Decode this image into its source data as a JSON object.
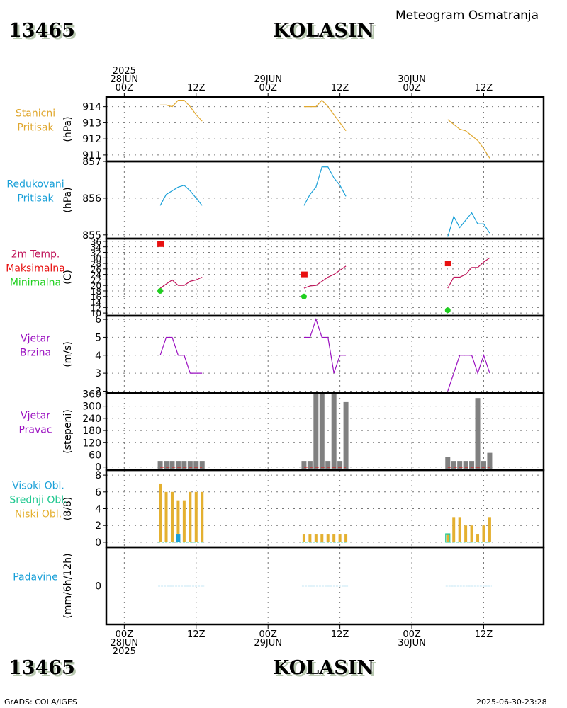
{
  "header": {
    "station_id": "13465",
    "station_name": "KOLASIN",
    "subtitle": "Meteogram Osmatranja"
  },
  "footer": {
    "station_id": "13465",
    "station_name": "KOLASIN",
    "credit": "GrADS: COLA/IGES",
    "timestamp": "2025-06-30-23:28"
  },
  "colors": {
    "station_pressure": "#e0a830",
    "reduced_pressure": "#1aa0d8",
    "temperature": "#c0145a",
    "tmax": "#e81010",
    "tmin": "#20d020",
    "wind": "#9a10c0",
    "wind_dir_bar": "#808080",
    "low_cloud": "#e4b030",
    "mid_cloud": "#20c890",
    "high_cloud": "#1aa0d8",
    "precip": "#1aa0d8"
  },
  "chart_data": {
    "type": "line",
    "title": "Meteogram Osmatranja - KOLASIN (13465)",
    "time_axis": {
      "unit": "hours since 2025-06-28 00Z",
      "range": [
        -3,
        70
      ],
      "top_labels": [
        {
          "h": 0,
          "lines": [
            "2025",
            "28JUN",
            "00Z"
          ]
        },
        {
          "h": 12,
          "lines": [
            "12Z"
          ]
        },
        {
          "h": 24,
          "lines": [
            "29JUN",
            "00Z"
          ]
        },
        {
          "h": 36,
          "lines": [
            "12Z"
          ]
        },
        {
          "h": 48,
          "lines": [
            "30JUN",
            "00Z"
          ]
        },
        {
          "h": 60,
          "lines": [
            "12Z"
          ]
        }
      ],
      "bottom_labels": [
        {
          "h": 0,
          "lines": [
            "00Z",
            "28JUN",
            "2025"
          ]
        },
        {
          "h": 12,
          "lines": [
            "12Z"
          ]
        },
        {
          "h": 24,
          "lines": [
            "00Z",
            "29JUN"
          ]
        },
        {
          "h": 36,
          "lines": [
            "12Z"
          ]
        },
        {
          "h": 48,
          "lines": [
            "00Z",
            "30JUN"
          ]
        },
        {
          "h": 60,
          "lines": [
            "12Z"
          ]
        }
      ]
    },
    "obs_hours": [
      6,
      7,
      8,
      9,
      10,
      11,
      12,
      13,
      30,
      31,
      32,
      33,
      34,
      35,
      36,
      37,
      54,
      55,
      56,
      57,
      58,
      59,
      60,
      61
    ],
    "panels": [
      {
        "key": "station_pressure",
        "label": [
          "Stanicni",
          "Pritisak"
        ],
        "unit": "(hPa)",
        "ylim": [
          910.6,
          914.6
        ],
        "ticks": [
          911,
          912,
          913,
          914
        ],
        "segments": [
          [
            914.1,
            914.1,
            914.0,
            914.4,
            914.4,
            914.0,
            913.5,
            913.1
          ],
          [
            914.0,
            914.0,
            914.0,
            914.4,
            914.0,
            913.5,
            913.0,
            912.5
          ],
          [
            913.2,
            912.9,
            912.6,
            912.5,
            912.2,
            911.9,
            911.4,
            910.8
          ]
        ]
      },
      {
        "key": "reduced_pressure",
        "label": [
          "Redukovani",
          "Pritisak"
        ],
        "unit": "(hPa)",
        "ylim": [
          854.9,
          857.0
        ],
        "ticks": [
          855,
          856,
          857
        ],
        "segments": [
          [
            855.8,
            856.1,
            856.2,
            856.3,
            856.35,
            856.2,
            856.0,
            855.8
          ],
          [
            855.8,
            856.1,
            856.3,
            856.85,
            856.85,
            856.55,
            856.35,
            856.05
          ],
          [
            854.95,
            855.5,
            855.2,
            855.4,
            855.6,
            855.3,
            855.3,
            855.05
          ]
        ]
      },
      {
        "key": "temperature",
        "label": [
          "2m Temp.",
          "Maksimalna",
          "Minimalna"
        ],
        "unit": "(C)",
        "ylim": [
          9,
          37
        ],
        "ticks": [
          10,
          12,
          14,
          16,
          18,
          20,
          22,
          24,
          26,
          28,
          30,
          32,
          34,
          36
        ],
        "segments": [
          [
            19,
            20.5,
            22,
            20,
            20,
            21.5,
            22,
            23
          ],
          [
            19,
            19.8,
            20,
            21.5,
            23,
            24,
            25.5,
            27
          ],
          [
            19,
            23,
            23,
            24,
            26.5,
            26.5,
            28.5,
            30
          ]
        ],
        "tmax": [
          {
            "h": 6,
            "v": 35
          },
          {
            "h": 30,
            "v": 24
          },
          {
            "h": 54,
            "v": 28
          }
        ],
        "tmin": [
          {
            "h": 6,
            "v": 18
          },
          {
            "h": 30,
            "v": 16
          },
          {
            "h": 54,
            "v": 11
          }
        ]
      },
      {
        "key": "wind",
        "label": [
          "Vjetar",
          "Brzina"
        ],
        "unit": "(m/s)",
        "ylim": [
          1.9,
          6.2
        ],
        "ticks": [
          2,
          3,
          4,
          5,
          6
        ],
        "segments": [
          [
            4,
            5,
            5,
            4,
            4,
            3,
            3,
            3
          ],
          [
            5,
            5,
            6,
            5,
            5,
            3,
            4,
            4
          ],
          [
            2,
            3,
            4,
            4,
            4,
            3,
            4,
            3
          ]
        ]
      },
      {
        "key": "wind_dir",
        "type": "bar",
        "label": [
          "Vjetar",
          "Pravac"
        ],
        "unit": "(stepeni)",
        "ylim": [
          -15,
          365
        ],
        "ticks": [
          0,
          60,
          120,
          180,
          240,
          300,
          360
        ],
        "values": [
          30,
          30,
          30,
          30,
          30,
          30,
          30,
          30,
          30,
          30,
          360,
          360,
          30,
          360,
          30,
          320,
          50,
          30,
          30,
          30,
          30,
          340,
          30,
          70
        ]
      },
      {
        "key": "clouds",
        "type": "bar",
        "label": [
          "Visoki Obl.",
          "Srednji Obl.",
          "Niski Obl."
        ],
        "unit": "(8/8)",
        "ylim": [
          -0.6,
          8.6
        ],
        "ticks": [
          0,
          2,
          4,
          6,
          8
        ],
        "low": [
          7,
          6,
          6,
          5,
          5,
          6,
          6,
          6,
          1,
          1,
          1,
          1,
          1,
          1,
          1,
          1,
          1,
          3,
          3,
          2,
          2,
          1,
          2,
          3
        ],
        "mid": [
          0,
          0,
          0,
          0,
          0,
          0,
          0,
          0,
          0,
          0,
          0,
          0,
          0,
          0,
          0,
          0,
          1,
          0,
          0,
          0,
          0,
          0,
          0,
          0
        ],
        "high": [
          0,
          0,
          0,
          1,
          0,
          0,
          0,
          0,
          0,
          0,
          0,
          0,
          0,
          0,
          0,
          0,
          0,
          0,
          0,
          0,
          0,
          0,
          0,
          0
        ]
      },
      {
        "key": "precip",
        "type": "bar",
        "label": [
          "Padavine"
        ],
        "unit": "(mm/6h/12h)",
        "ylim": [
          -1,
          1
        ],
        "ticks": [
          0
        ],
        "values": [
          0,
          0,
          0,
          0,
          0,
          0,
          0,
          0,
          0,
          0,
          0,
          0,
          0,
          0,
          0,
          0,
          0,
          0,
          0,
          0,
          0,
          0,
          0,
          0
        ]
      }
    ]
  }
}
